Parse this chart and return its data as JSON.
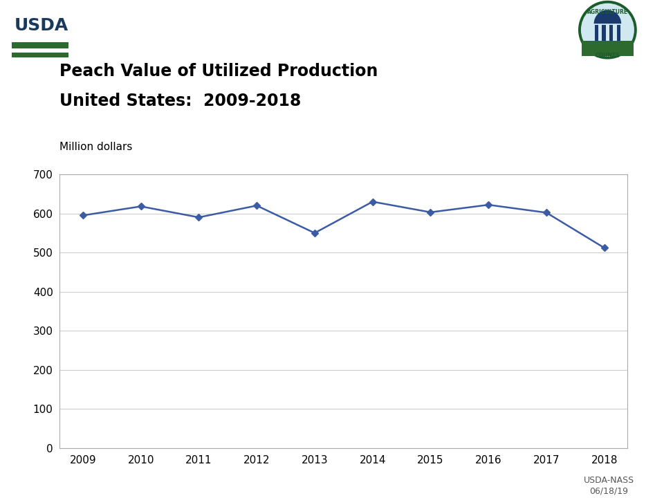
{
  "title_line1": "Peach Value of Utilized Production",
  "title_line2": "United States:  2009-2018",
  "ylabel": "Million dollars",
  "years": [
    2009,
    2010,
    2011,
    2012,
    2013,
    2014,
    2015,
    2016,
    2017,
    2018
  ],
  "values": [
    595,
    618,
    590,
    620,
    550,
    630,
    603,
    622,
    602,
    512
  ],
  "line_color": "#3B5BA5",
  "marker": "D",
  "marker_size": 5,
  "ylim": [
    0,
    700
  ],
  "yticks": [
    0,
    100,
    200,
    300,
    400,
    500,
    600,
    700
  ],
  "grid_color": "#cccccc",
  "background_color": "#ffffff",
  "plot_bg_color": "#ffffff",
  "footer_text": "USDA-NASS\n06/18/19",
  "title_fontsize": 17,
  "label_fontsize": 11,
  "tick_fontsize": 11,
  "footer_fontsize": 9,
  "usda_text_color": "#1a3a5c",
  "usda_green": "#2d6a2d"
}
